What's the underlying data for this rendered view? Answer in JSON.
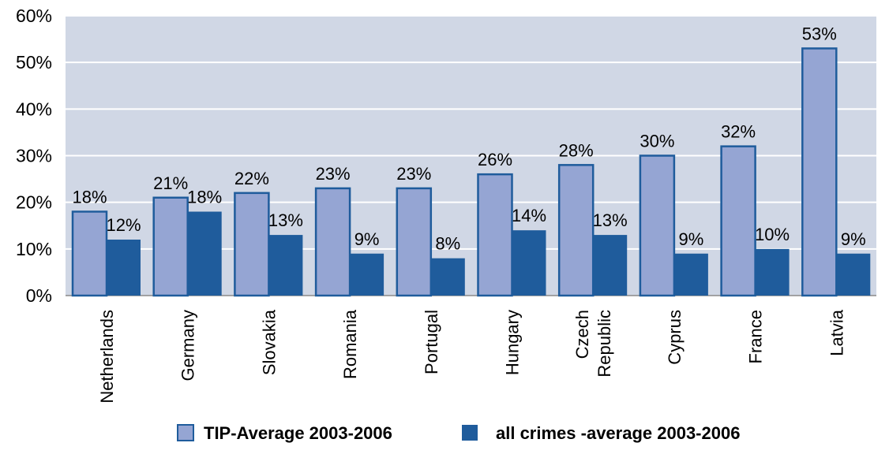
{
  "chart_data": {
    "type": "bar",
    "title": "",
    "xlabel": "",
    "ylabel": "",
    "ylim": [
      0,
      60
    ],
    "y_ticks": [
      "0%",
      "10%",
      "20%",
      "30%",
      "40%",
      "50%",
      "60%"
    ],
    "y_tick_values": [
      0,
      10,
      20,
      30,
      40,
      50,
      60
    ],
    "grid": true,
    "legend_position": "bottom",
    "plot_background": "#d0d7e5",
    "categories": [
      [
        "Netherlands"
      ],
      [
        "Germany"
      ],
      [
        "Slovakia"
      ],
      [
        "Romania"
      ],
      [
        "Portugal"
      ],
      [
        "Hungary"
      ],
      [
        "Czech",
        "Republic"
      ],
      [
        "Cyprus"
      ],
      [
        "France"
      ],
      [
        "Latvia"
      ]
    ],
    "series": [
      {
        "name": "TIP-Average 2003-2006",
        "color": "#95a5d3",
        "border": "#1f5c9c",
        "values": [
          18,
          21,
          22,
          23,
          23,
          26,
          28,
          30,
          32,
          53
        ],
        "labels": [
          "18%",
          "21%",
          "22%",
          "23%",
          "23%",
          "26%",
          "28%",
          "30%",
          "32%",
          "53%"
        ]
      },
      {
        "name": "all crimes -average 2003-2006",
        "color": "#1f5c9c",
        "border": "#1f5c9c",
        "values": [
          12,
          18,
          13,
          9,
          8,
          14,
          13,
          9,
          10,
          9
        ],
        "labels": [
          "12%",
          "18%",
          "13%",
          "9%",
          "8%",
          "14%",
          "13%",
          "9%",
          "10%",
          "9%"
        ]
      }
    ]
  }
}
